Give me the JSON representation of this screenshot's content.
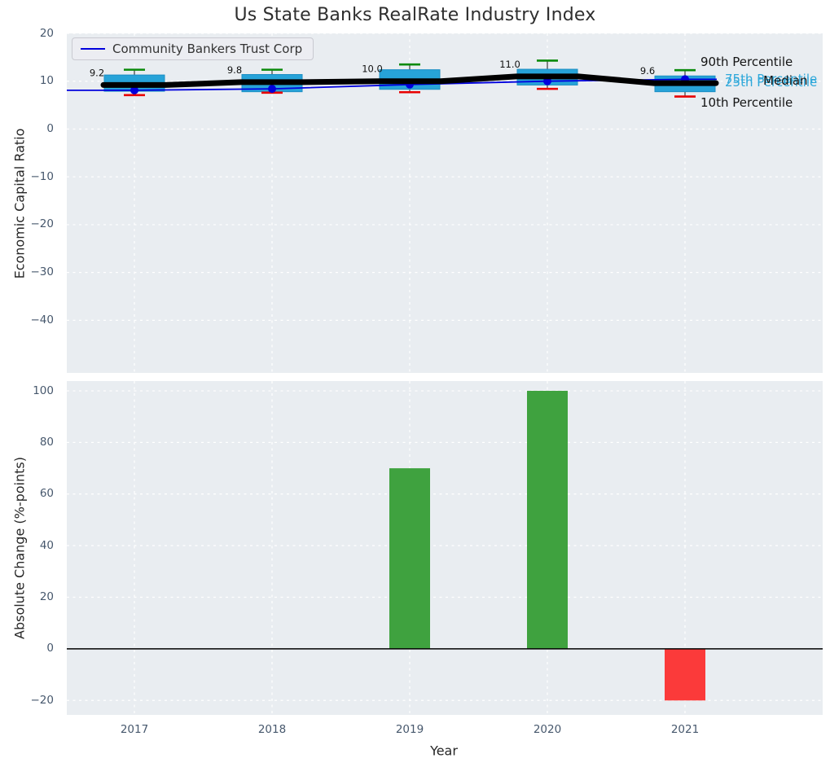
{
  "title": "Us State Banks RealRate Industry Index",
  "legend": {
    "label": "Community Bankers Trust Corp"
  },
  "annotations": {
    "p90": "90th Percentile",
    "p75": "75th Percentile",
    "median": "Median",
    "p25": "25th Percentile",
    "p10": "10th Percentile"
  },
  "colors": {
    "figure_bg": "#ffffff",
    "axes_bg": "#e9edf1",
    "grid": "#ffffff",
    "box_fill": "#27a3d8",
    "box_edge": "#1d8fc4",
    "whisker": "#555555",
    "cap_top": "#0a8a0a",
    "cap_bottom": "#e80000",
    "median_line": "#000000",
    "company_line": "#0000dd",
    "bar_positive": "#3fa23f",
    "bar_negative": "#fb3a3a",
    "zero_line": "#000000",
    "tick_label": "#47586d",
    "percentile_label": "#2fa8da",
    "value_label": "#111111"
  },
  "chart_data": [
    {
      "type": "boxplot+line",
      "title": "Us State Banks RealRate Industry Index",
      "ylabel": "Economic Capital Ratio",
      "categories": [
        "2017",
        "2018",
        "2019",
        "2020",
        "2021"
      ],
      "series": [
        {
          "name": "Community Bankers Trust Corp",
          "values": [
            8.1,
            8.4,
            9.3,
            10.0,
            10.4
          ]
        },
        {
          "name": "Median",
          "values": [
            9.2,
            9.8,
            10.0,
            11.0,
            9.6
          ]
        },
        {
          "name": "75th Percentile",
          "values": [
            11.3,
            11.4,
            12.4,
            12.5,
            11.1
          ]
        },
        {
          "name": "25th Percentile",
          "values": [
            7.9,
            7.8,
            8.3,
            9.2,
            7.8
          ]
        },
        {
          "name": "90th Percentile",
          "values": [
            12.4,
            12.4,
            13.5,
            14.3,
            12.3
          ]
        },
        {
          "name": "10th Percentile",
          "values": [
            7.1,
            7.6,
            7.7,
            8.4,
            6.8
          ]
        }
      ],
      "median_labels": [
        "9.2",
        "9.8",
        "10.0",
        "11.0",
        "9.6"
      ],
      "ylim": [
        -51,
        20
      ],
      "yticks": [
        20,
        10,
        0,
        -10,
        -20,
        -30,
        -40
      ],
      "ytick_labels": [
        "20",
        "10",
        "0",
        "−10",
        "−20",
        "−30",
        "−40"
      ],
      "grid": true,
      "legend_position": "upper left"
    },
    {
      "type": "bar",
      "ylabel": "Absolute Change (%-points)",
      "xlabel": "Year",
      "categories": [
        "2017",
        "2018",
        "2019",
        "2020",
        "2021"
      ],
      "values": [
        0,
        0,
        70,
        100,
        -20
      ],
      "ylim": [
        -25.6,
        103.8
      ],
      "yticks": [
        100,
        80,
        60,
        40,
        20,
        0,
        -20
      ],
      "ytick_labels": [
        "100",
        "80",
        "60",
        "40",
        "20",
        "0",
        "−20"
      ],
      "grid": true
    }
  ]
}
